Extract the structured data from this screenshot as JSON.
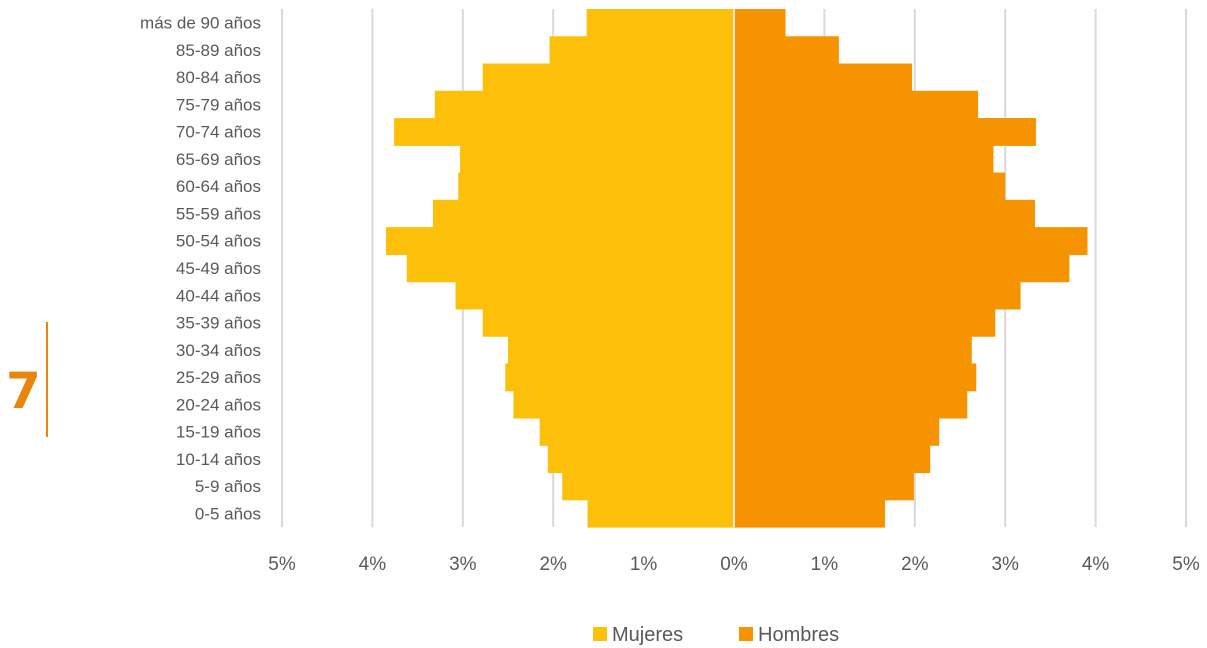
{
  "page": {
    "number": "7"
  },
  "chart_data": {
    "type": "bar",
    "orientation": "horizontal",
    "subtype": "population-pyramid",
    "categories": [
      "0-5 años",
      "5-9 años",
      "10-14 años",
      "15-19 años",
      "20-24 años",
      "25-29 años",
      "30-34 años",
      "35-39 años",
      "40-44 años",
      "45-49 años",
      "50-54 años",
      "55-59 años",
      "60-64 años",
      "65-69 años",
      "70-74 años",
      "75-79 años",
      "80-84 años",
      "85-89 años",
      "más de 90 años"
    ],
    "series": [
      {
        "name": "Mujeres",
        "color": "#fcbf0a",
        "side": "left",
        "values": [
          1.62,
          1.9,
          2.06,
          2.15,
          2.44,
          2.53,
          2.5,
          2.78,
          3.08,
          3.62,
          3.85,
          3.33,
          3.05,
          3.03,
          3.76,
          3.31,
          2.78,
          2.04,
          1.63
        ]
      },
      {
        "name": "Hombres",
        "color": "#f59300",
        "side": "right",
        "values": [
          1.67,
          1.99,
          2.17,
          2.27,
          2.58,
          2.68,
          2.63,
          2.89,
          3.17,
          3.71,
          3.91,
          3.33,
          3.0,
          2.87,
          3.34,
          2.7,
          1.97,
          1.16,
          0.57
        ]
      }
    ],
    "xlim": [
      -5,
      5
    ],
    "x_ticks": [
      -5,
      -4,
      -3,
      -2,
      -1,
      0,
      1,
      2,
      3,
      4,
      5
    ],
    "x_tick_labels": [
      "5%",
      "4%",
      "3%",
      "2%",
      "1%",
      "0%",
      "1%",
      "2%",
      "3%",
      "4%",
      "5%"
    ],
    "grid": true,
    "legend": "bottom",
    "title": "",
    "xlabel": "",
    "ylabel": ""
  }
}
